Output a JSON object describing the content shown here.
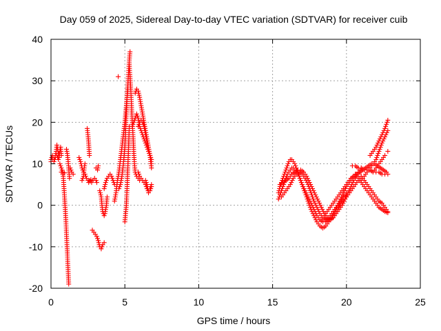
{
  "chart_data": {
    "type": "scatter",
    "title": "Day 059 of 2025, Sidereal Day-to-day VTEC variation (SDTVAR) for receiver cuib",
    "xlabel": "GPS time / hours",
    "ylabel": "SDTVAR / TECUs",
    "xlim": [
      0,
      25
    ],
    "ylim": [
      -20,
      40
    ],
    "xticks": [
      0,
      5,
      10,
      15,
      20,
      25
    ],
    "yticks": [
      -20,
      -10,
      0,
      10,
      20,
      30,
      40
    ],
    "grid": true,
    "marker": "+",
    "color": "#ff0000",
    "series": [
      {
        "name": "SDTVAR",
        "tracks": [
          {
            "x": [
              0.0,
              0.1,
              0.2,
              0.3,
              0.35,
              0.4,
              0.45,
              0.5,
              0.55,
              0.6,
              0.65,
              0.7
            ],
            "y": [
              11,
              12,
              11.5,
              12,
              13,
              14.5,
              13.5,
              12.5,
              11.5,
              13,
              14,
              12
            ]
          },
          {
            "x": [
              0.0,
              0.1,
              0.2,
              0.3,
              0.4,
              0.5,
              0.55
            ],
            "y": [
              10.5,
              11,
              10.5,
              11.5,
              12,
              11,
              12.5
            ]
          },
          {
            "x": [
              0.6,
              0.7,
              0.75,
              0.8,
              0.85,
              0.9,
              0.95,
              1.0,
              1.05,
              1.1,
              1.15,
              1.2
            ],
            "y": [
              10,
              9,
              8.5,
              8,
              6,
              3,
              0,
              -3,
              -7,
              -11,
              -15,
              -19
            ]
          },
          {
            "x": [
              0.7,
              0.8,
              0.9
            ],
            "y": [
              8,
              7.5,
              7.8
            ]
          },
          {
            "x": [
              1.05,
              1.1,
              1.15,
              1.2,
              1.25
            ],
            "y": [
              13.5,
              12.5,
              11,
              9,
              6.5
            ]
          },
          {
            "x": [
              1.3,
              1.4,
              1.5
            ],
            "y": [
              9,
              8,
              7.5
            ]
          },
          {
            "x": [
              1.9,
              2.0,
              2.1,
              2.2,
              2.3,
              2.4,
              2.5,
              2.55,
              2.6,
              2.65,
              2.7
            ],
            "y": [
              11.5,
              10.5,
              9,
              8,
              7.5,
              6.5,
              6,
              5.5,
              6,
              5.8,
              6.2
            ]
          },
          {
            "x": [
              2.45,
              2.5,
              2.55,
              2.6
            ],
            "y": [
              18.5,
              17,
              15,
              12
            ]
          },
          {
            "x": [
              2.1,
              2.2,
              2.25,
              2.3
            ],
            "y": [
              6,
              7,
              9,
              10
            ]
          },
          {
            "x": [
              2.75,
              2.85,
              2.95,
              3.05,
              3.1
            ],
            "y": [
              5.5,
              6,
              6.5,
              6,
              5.5
            ]
          },
          {
            "x": [
              2.8,
              2.9,
              3.0,
              3.1,
              3.2,
              3.3,
              3.4,
              3.5,
              3.6
            ],
            "y": [
              -6,
              -6.5,
              -7,
              -7.5,
              -8.5,
              -10,
              -10.5,
              -9.5,
              -9
            ]
          },
          {
            "x": [
              3.05,
              3.15,
              3.2
            ],
            "y": [
              9,
              8.5,
              9.5
            ]
          },
          {
            "x": [
              3.3,
              3.4,
              3.45,
              3.5,
              3.55,
              3.6,
              3.65,
              3.7,
              3.75,
              3.8
            ],
            "y": [
              3.5,
              2,
              0,
              -1.5,
              -2,
              -2.5,
              -2,
              -1,
              0,
              2
            ]
          },
          {
            "x": [
              3.6,
              3.7,
              3.8,
              3.9,
              4.0,
              4.1,
              4.2,
              4.3
            ],
            "y": [
              4,
              5.5,
              6.5,
              7,
              7.5,
              7,
              6,
              5
            ]
          },
          {
            "x": [
              4.3,
              4.4,
              4.5,
              4.6,
              4.7,
              4.8,
              4.9,
              5.0,
              5.05,
              5.1,
              5.15,
              5.2
            ],
            "y": [
              1,
              3,
              6,
              8,
              11,
              14,
              17,
              20,
              22,
              24,
              26,
              28
            ]
          },
          {
            "x": [
              4.6,
              4.7,
              4.8,
              4.9,
              5.0,
              5.05,
              5.1,
              5.15,
              5.2,
              5.25,
              5.3,
              5.35
            ],
            "y": [
              4,
              5,
              7,
              10,
              14,
              18,
              22,
              26,
              29,
              32,
              35,
              37
            ]
          },
          {
            "x": [
              4.55
            ],
            "y": [
              31
            ]
          },
          {
            "x": [
              5.0,
              5.05,
              5.1,
              5.15,
              5.2,
              5.25,
              5.3
            ],
            "y": [
              -4,
              -2,
              0,
              4,
              9,
              14,
              19
            ]
          },
          {
            "x": [
              5.3,
              5.35,
              5.4,
              5.45,
              5.5,
              5.55,
              5.6,
              5.65,
              5.7,
              5.8,
              5.9,
              6.0
            ],
            "y": [
              34,
              31,
              28,
              24,
              20,
              17,
              13,
              10,
              8,
              7,
              6.5,
              6
            ]
          },
          {
            "x": [
              5.5,
              5.6,
              5.7,
              5.8,
              5.9,
              6.0,
              6.1,
              6.2,
              6.3,
              6.4,
              6.5,
              6.6,
              6.7,
              6.8
            ],
            "y": [
              19,
              20,
              21,
              22,
              21,
              19,
              18,
              17,
              16,
              15,
              14,
              13,
              12,
              10
            ]
          },
          {
            "x": [
              5.7,
              5.8,
              5.9,
              6.0,
              6.1,
              6.2,
              6.3,
              6.4,
              6.5,
              6.6,
              6.7,
              6.8
            ],
            "y": [
              27,
              28,
              27.5,
              26,
              24,
              22,
              20,
              18,
              16,
              14,
              12,
              9
            ]
          },
          {
            "x": [
              5.9,
              6.0,
              6.1,
              6.2,
              6.3,
              6.4,
              6.5,
              6.6,
              6.7,
              6.8
            ],
            "y": [
              19,
              20,
              20.5,
              20,
              19,
              17,
              15,
              13,
              12,
              11
            ]
          },
          {
            "x": [
              5.9,
              6.0,
              6.1,
              6.2,
              6.3,
              6.4,
              6.5,
              6.6,
              6.7,
              6.8
            ],
            "y": [
              8,
              7,
              6.5,
              6,
              5.5,
              5,
              4,
              3.5,
              4,
              5
            ]
          },
          {
            "x": [
              6.4,
              6.5,
              6.6,
              6.7,
              6.8
            ],
            "y": [
              6,
              5,
              3,
              3.5,
              4.5
            ]
          },
          {
            "x": [
              15.4,
              15.5,
              15.6,
              15.7,
              15.8,
              15.9,
              16.0,
              16.1,
              16.2,
              16.3,
              16.4,
              16.5,
              16.6,
              16.7,
              16.8,
              16.9,
              17.0,
              17.2,
              17.4,
              17.6,
              17.8,
              18.0,
              18.2,
              18.4,
              18.6,
              18.8,
              19.0,
              19.2,
              19.4,
              19.6,
              19.8,
              20.0,
              20.2,
              20.4,
              20.6,
              20.8,
              21.0
            ],
            "y": [
              3,
              4.5,
              5.5,
              6.5,
              7.5,
              8.5,
              9.5,
              10.5,
              11,
              11,
              10.5,
              10,
              9,
              8,
              7,
              6,
              5,
              3,
              1,
              -1,
              -2.5,
              -4,
              -5,
              -5.5,
              -5,
              -4,
              -3,
              -1.5,
              0,
              1.5,
              3,
              4.5,
              5.5,
              6.5,
              7,
              8,
              9
            ]
          },
          {
            "x": [
              15.4,
              15.5,
              15.6,
              15.7,
              15.8,
              15.9,
              16.0,
              16.1,
              16.2,
              16.3,
              16.4,
              16.5,
              16.6,
              16.7,
              16.8,
              16.9,
              17.0,
              17.2,
              17.4,
              17.6,
              17.8,
              18.0,
              18.2,
              18.4,
              18.6,
              18.8,
              19.0,
              19.2,
              19.4,
              19.6,
              19.8,
              20.0
            ],
            "y": [
              1.5,
              2.5,
              3.5,
              4.5,
              5.5,
              6.5,
              7.5,
              8,
              8.5,
              9,
              9,
              8.5,
              8,
              7.5,
              7,
              6,
              5,
              3.5,
              2,
              0.5,
              -1,
              -2.5,
              -3.5,
              -4,
              -4,
              -3.5,
              -3,
              -2,
              -1,
              0.5,
              2,
              3
            ]
          },
          {
            "x": [
              15.5,
              15.7,
              15.9,
              16.1,
              16.3,
              16.5,
              16.7,
              16.9,
              17.1,
              17.3,
              17.5,
              17.7,
              17.9,
              18.1,
              18.3,
              18.5,
              18.7,
              18.9,
              19.1,
              19.3,
              19.5,
              19.7,
              19.9,
              20.1,
              20.3,
              20.5,
              20.7,
              20.9
            ],
            "y": [
              5,
              5.5,
              6,
              6.5,
              7.5,
              8,
              8.5,
              8.5,
              8,
              7,
              5.5,
              4,
              2.5,
              1,
              -0.5,
              -2,
              -3,
              -3.5,
              -3,
              -2,
              -1,
              0,
              1.5,
              3,
              4.5,
              6,
              7,
              8
            ]
          },
          {
            "x": [
              15.6,
              15.8,
              16.0,
              16.2,
              16.4,
              16.6,
              16.8,
              17.0,
              17.2,
              17.4,
              17.6,
              17.8,
              18.0,
              18.2,
              18.4,
              18.6,
              18.8,
              19.0,
              19.2,
              19.4,
              19.6,
              19.8,
              20.0
            ],
            "y": [
              2,
              3,
              4,
              5,
              6.5,
              7.5,
              8,
              7.5,
              6.5,
              5,
              3,
              1,
              -0.5,
              -2,
              -3,
              -3.5,
              -3,
              -2,
              -1,
              0,
              1,
              2,
              2.5
            ]
          },
          {
            "x": [
              18.5,
              18.7,
              18.9,
              19.1,
              19.3,
              19.5,
              19.7,
              19.9,
              20.1,
              20.3,
              20.5,
              20.7,
              20.9,
              21.1,
              21.3,
              21.5,
              21.7,
              21.9,
              22.1,
              22.3,
              22.5,
              22.7
            ],
            "y": [
              -2.5,
              -1.5,
              -0.5,
              0.5,
              1.5,
              2.5,
              3.5,
              4.5,
              5.5,
              6.5,
              7,
              7.5,
              8,
              8.5,
              9,
              9.5,
              10,
              10,
              9.5,
              9,
              8.5,
              8
            ]
          },
          {
            "x": [
              19.0,
              19.2,
              19.4,
              19.6,
              19.8,
              20.0,
              20.2,
              20.4,
              20.6,
              20.8,
              21.0,
              21.2,
              21.4,
              21.6,
              21.8,
              22.0,
              22.2,
              22.4,
              22.6,
              22.8
            ],
            "y": [
              -3,
              -2,
              -1,
              0,
              1,
              2,
              3,
              4,
              5,
              6,
              7,
              6,
              5,
              4,
              3,
              2,
              1,
              0.5,
              -0.5,
              -1.5
            ]
          },
          {
            "x": [
              20.6,
              20.8,
              21.0,
              21.2,
              21.4,
              21.6,
              21.8,
              22.0,
              22.2,
              22.4,
              22.6,
              22.8
            ],
            "y": [
              7.5,
              6.5,
              5.5,
              4.5,
              3.5,
              2.5,
              1.5,
              0.5,
              -0.5,
              -1,
              -1.5,
              -1.8
            ]
          },
          {
            "x": [
              20.4,
              20.6,
              20.8,
              21.0,
              21.2,
              21.4,
              21.6,
              21.8,
              22.0,
              22.2,
              22.4,
              22.6,
              22.8
            ],
            "y": [
              9.5,
              9.5,
              9,
              9,
              8.5,
              8.5,
              8.5,
              8,
              8,
              8,
              7.5,
              7.5,
              7.5
            ]
          },
          {
            "x": [
              21.0,
              21.2,
              21.4,
              21.6,
              21.8,
              22.0,
              22.2,
              22.4,
              22.6,
              22.8
            ],
            "y": [
              6,
              7,
              8,
              9,
              10,
              11,
              13,
              15,
              16.5,
              18
            ]
          },
          {
            "x": [
              21.6,
              21.8,
              22.0,
              22.2,
              22.4,
              22.6,
              22.8
            ],
            "y": [
              12,
              13,
              14,
              15.5,
              17,
              18.5,
              20.5
            ]
          },
          {
            "x": [
              21.8,
              22.0,
              22.2,
              22.4,
              22.6
            ],
            "y": [
              8,
              9,
              10,
              11,
              12
            ]
          },
          {
            "x": [
              22.8
            ],
            "y": [
              13
            ]
          }
        ]
      }
    ]
  }
}
